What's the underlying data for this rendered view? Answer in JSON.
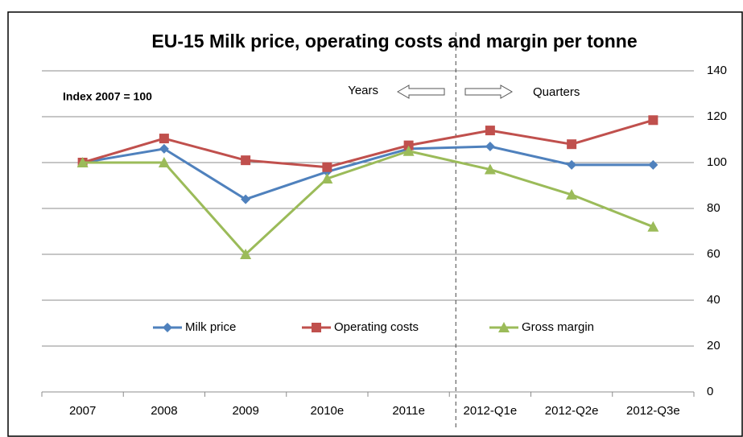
{
  "chart_data": {
    "type": "line",
    "title": "EU-15 Milk price, operating costs and margin per tonne",
    "annotations": [
      "Index 2007 = 100",
      "Years",
      "Quarters"
    ],
    "categories": [
      "2007",
      "2008",
      "2009",
      "2010e",
      "2011e",
      "2012-Q1e",
      "2012-Q2e",
      "2012-Q3e"
    ],
    "series": [
      {
        "name": "Milk price",
        "color": "#4f81bd",
        "marker": "diamond",
        "values": [
          100,
          106,
          84,
          96,
          106,
          107,
          99,
          99
        ]
      },
      {
        "name": "Operating costs",
        "color": "#c0504d",
        "marker": "square",
        "values": [
          100,
          110.5,
          101,
          98,
          107.5,
          114,
          108,
          118.5
        ]
      },
      {
        "name": "Gross margin",
        "color": "#9bbb59",
        "marker": "triangle",
        "values": [
          100,
          100,
          60,
          93,
          105,
          97,
          86,
          72
        ]
      }
    ],
    "ylim": [
      0,
      140
    ],
    "yticks": [
      0,
      20,
      40,
      60,
      80,
      100,
      120,
      140
    ],
    "y_axis_side": "right",
    "grid": true,
    "legend": "center"
  }
}
